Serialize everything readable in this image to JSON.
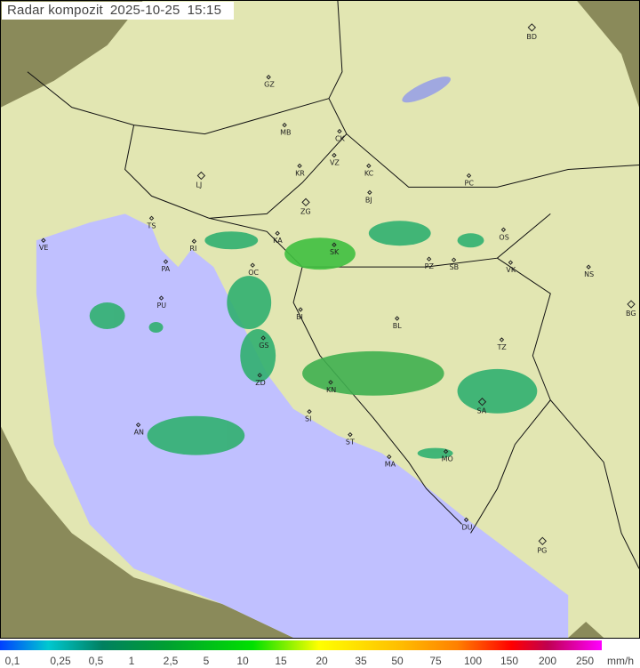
{
  "title": {
    "label": "Radar kompozit",
    "date": "2025-10-25",
    "time": "15:15"
  },
  "legend": {
    "unit": "mm/h",
    "ticks": [
      "0,1",
      "0,25",
      "0,5",
      "1",
      "2,5",
      "5",
      "10",
      "15",
      "20",
      "35",
      "50",
      "75",
      "100",
      "150",
      "200",
      "250"
    ]
  },
  "colors": {
    "sea": "#c0c0ff",
    "land": "#e4e8b0",
    "outside": "#8a8a5a",
    "rain_light": "#20a080",
    "rain_mid": "#00c040"
  },
  "cities": [
    "BD",
    "GZ",
    "MB",
    "CK",
    "VZ",
    "KR",
    "KC",
    "PC",
    "LJ",
    "BJ",
    "ZG",
    "TS",
    "VE",
    "RI",
    "KA",
    "SK",
    "OS",
    "PA",
    "PZ",
    "SB",
    "VK",
    "NS",
    "OC",
    "PU",
    "BG",
    "BI",
    "BL",
    "GS",
    "TZ",
    "ZD",
    "KN",
    "SA",
    "AN",
    "SI",
    "ST",
    "MA",
    "MO",
    "DU",
    "PG"
  ]
}
